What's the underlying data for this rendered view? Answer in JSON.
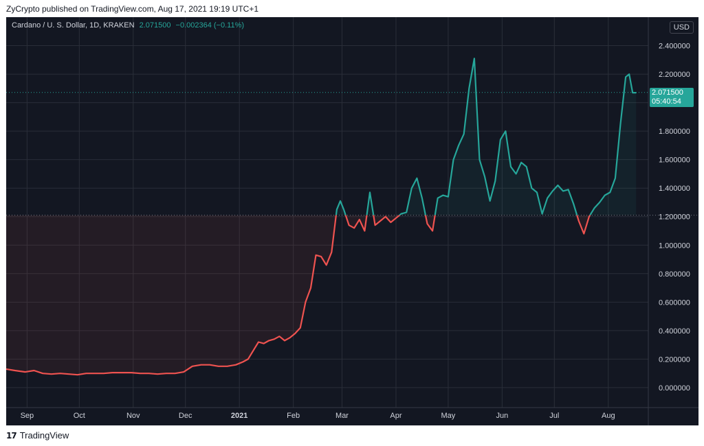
{
  "header": {
    "text": "ZyCrypto published on TradingView.com, Aug 17, 2021 19:19 UTC+1"
  },
  "legend": {
    "title": "Cardano / U. S. Dollar, 1D, KRAKEN",
    "value": "2.071500",
    "change": "−0.002364 (−0.11%)"
  },
  "currency_button": "USD",
  "last_price": {
    "value": "2.071500",
    "countdown": "05:40:54"
  },
  "footer": {
    "logo_text": "TradingView"
  },
  "colors": {
    "background": "#131722",
    "up": "#26a69a",
    "down": "#ef5350",
    "grid": "#2a2e39",
    "text": "#d1d4dc"
  },
  "chart_data": {
    "type": "line",
    "title": "Cardano / U. S. Dollar, 1D, KRAKEN",
    "xlabel": "",
    "ylabel": "",
    "x_tick_labels": [
      "Sep",
      "Oct",
      "Nov",
      "Dec",
      "2021",
      "Feb",
      "Mar",
      "Apr",
      "May",
      "Jun",
      "Jul",
      "Aug"
    ],
    "y_tick_labels": [
      "2.400000",
      "2.200000",
      "2.000000",
      "1.800000",
      "1.600000",
      "1.400000",
      "1.200000",
      "1.000000",
      "0.800000",
      "0.600000",
      "0.400000",
      "0.200000",
      "0.000000"
    ],
    "ylim": [
      -0.14,
      2.6
    ],
    "baseline": 1.21,
    "x": [
      "2020-08-20",
      "2020-08-25",
      "2020-08-31",
      "2020-09-05",
      "2020-09-10",
      "2020-09-15",
      "2020-09-20",
      "2020-09-25",
      "2020-09-30",
      "2020-10-05",
      "2020-10-10",
      "2020-10-15",
      "2020-10-20",
      "2020-10-25",
      "2020-10-31",
      "2020-11-05",
      "2020-11-10",
      "2020-11-15",
      "2020-11-20",
      "2020-11-25",
      "2020-11-30",
      "2020-12-05",
      "2020-12-10",
      "2020-12-15",
      "2020-12-20",
      "2020-12-25",
      "2020-12-30",
      "2021-01-03",
      "2021-01-06",
      "2021-01-09",
      "2021-01-12",
      "2021-01-15",
      "2021-01-18",
      "2021-01-21",
      "2021-01-24",
      "2021-01-27",
      "2021-01-30",
      "2021-02-02",
      "2021-02-05",
      "2021-02-08",
      "2021-02-11",
      "2021-02-14",
      "2021-02-17",
      "2021-02-20",
      "2021-02-23",
      "2021-02-26",
      "2021-02-28",
      "2021-03-02",
      "2021-03-05",
      "2021-03-08",
      "2021-03-11",
      "2021-03-14",
      "2021-03-17",
      "2021-03-20",
      "2021-03-23",
      "2021-03-26",
      "2021-03-29",
      "2021-04-01",
      "2021-04-04",
      "2021-04-07",
      "2021-04-10",
      "2021-04-13",
      "2021-04-16",
      "2021-04-19",
      "2021-04-22",
      "2021-04-25",
      "2021-04-28",
      "2021-05-01",
      "2021-05-04",
      "2021-05-07",
      "2021-05-10",
      "2021-05-13",
      "2021-05-16",
      "2021-05-19",
      "2021-05-22",
      "2021-05-25",
      "2021-05-28",
      "2021-05-31",
      "2021-06-03",
      "2021-06-06",
      "2021-06-09",
      "2021-06-12",
      "2021-06-15",
      "2021-06-18",
      "2021-06-21",
      "2021-06-24",
      "2021-06-27",
      "2021-06-30",
      "2021-07-03",
      "2021-07-06",
      "2021-07-09",
      "2021-07-12",
      "2021-07-15",
      "2021-07-18",
      "2021-07-21",
      "2021-07-24",
      "2021-07-27",
      "2021-07-30",
      "2021-08-02",
      "2021-08-05",
      "2021-08-08",
      "2021-08-11",
      "2021-08-13",
      "2021-08-15",
      "2021-08-17"
    ],
    "series": [
      {
        "values": [
          0.13,
          0.12,
          0.11,
          0.12,
          0.1,
          0.095,
          0.1,
          0.095,
          0.09,
          0.1,
          0.1,
          0.1,
          0.105,
          0.105,
          0.105,
          0.1,
          0.1,
          0.095,
          0.1,
          0.1,
          0.11,
          0.15,
          0.16,
          0.16,
          0.15,
          0.15,
          0.16,
          0.18,
          0.2,
          0.26,
          0.32,
          0.31,
          0.33,
          0.34,
          0.36,
          0.33,
          0.35,
          0.38,
          0.42,
          0.6,
          0.7,
          0.93,
          0.92,
          0.86,
          0.95,
          1.25,
          1.31,
          1.25,
          1.14,
          1.12,
          1.18,
          1.1,
          1.37,
          1.14,
          1.17,
          1.2,
          1.16,
          1.19,
          1.22,
          1.23,
          1.4,
          1.47,
          1.33,
          1.15,
          1.1,
          1.33,
          1.35,
          1.34,
          1.6,
          1.7,
          1.78,
          2.1,
          2.31,
          1.6,
          1.48,
          1.31,
          1.45,
          1.74,
          1.8,
          1.55,
          1.5,
          1.58,
          1.55,
          1.4,
          1.37,
          1.22,
          1.33,
          1.38,
          1.42,
          1.38,
          1.39,
          1.29,
          1.17,
          1.08,
          1.2,
          1.26,
          1.3,
          1.35,
          1.37,
          1.47,
          1.85,
          2.18,
          2.2,
          2.07,
          2.07
        ]
      }
    ]
  }
}
